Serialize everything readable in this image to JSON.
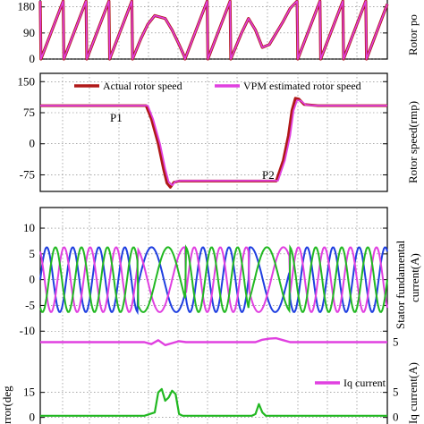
{
  "colors": {
    "actual": "#b01818",
    "vpm": "#e040e0",
    "phase_a": "#1f3fe0",
    "phase_b": "#e040e0",
    "phase_c": "#22b822",
    "iq": "#e040e0",
    "error": "#22b822"
  },
  "chart_data": [
    {
      "type": "line",
      "id": "rotor-position",
      "ylabel": "Rotor po",
      "yticks": [
        0,
        90,
        180
      ],
      "ytick_labels": [
        "0",
        "90",
        "180"
      ],
      "ylim": [
        0,
        210
      ],
      "xlim": [
        0,
        100
      ],
      "grid": true,
      "series": [
        {
          "name": "",
          "x": [
            0,
            0.2,
            6.6,
            6.8,
            13.2,
            13.4,
            19.8,
            20,
            26.4,
            26.6,
            29,
            31,
            33,
            36,
            38,
            40,
            41.5,
            41.7,
            48.1,
            48.3,
            54.7,
            54.9,
            58,
            60,
            62,
            64,
            66,
            68,
            70,
            72,
            74,
            74.2,
            80.6,
            80.8,
            87.2,
            87.4,
            93.8,
            94,
            100
          ],
          "y": [
            200,
            0,
            200,
            0,
            200,
            0,
            200,
            0,
            200,
            0,
            70,
            120,
            150,
            140,
            100,
            50,
            10,
            0,
            200,
            0,
            200,
            0,
            90,
            140,
            100,
            40,
            50,
            90,
            130,
            175,
            200,
            0,
            200,
            0,
            200,
            0,
            200,
            0,
            190
          ]
        }
      ]
    },
    {
      "type": "line",
      "id": "rotor-speed",
      "ylabel": "Rotor speed(rmp)",
      "yticks": [
        -75,
        0,
        75,
        150
      ],
      "ytick_labels": [
        "-75",
        "0",
        "75",
        "150"
      ],
      "ylim": [
        -115,
        170
      ],
      "xlim": [
        0,
        100
      ],
      "grid": true,
      "legend_position": "top",
      "annotations": [
        {
          "text": "P1",
          "x": 30.5,
          "y": 92
        },
        {
          "text": "P2",
          "x": 68,
          "y": -90
        }
      ],
      "series": [
        {
          "name": "Actual rotor speed",
          "x": [
            0,
            30.5,
            32,
            34,
            35.5,
            36.5,
            37.5,
            38.5,
            40,
            45,
            50,
            55,
            60,
            65,
            68,
            70,
            71.5,
            72.5,
            73.5,
            74.5,
            76,
            80,
            90,
            100
          ],
          "y": [
            92,
            92,
            60,
            0,
            -60,
            -95,
            -105,
            -93,
            -90,
            -90,
            -90,
            -90,
            -90,
            -90,
            -90,
            -40,
            20,
            80,
            110,
            108,
            95,
            92,
            92,
            92
          ]
        },
        {
          "name": "VPM estimated rotor speed",
          "x": [
            0,
            31,
            32.5,
            34.5,
            36,
            37,
            38,
            39,
            40.5,
            45,
            50,
            55,
            60,
            65,
            68.5,
            70.5,
            72,
            73,
            74,
            75,
            76.5,
            80,
            90,
            100
          ],
          "y": [
            92,
            92,
            60,
            0,
            -60,
            -92,
            -100,
            -91,
            -89,
            -89,
            -89,
            -89,
            -89,
            -89,
            -89,
            -40,
            20,
            80,
            105,
            104,
            94,
            92,
            92,
            92
          ]
        }
      ]
    },
    {
      "type": "line",
      "id": "stator-current",
      "ylabel": "Stator fundamental current(A)",
      "yticks": [
        -10,
        -5,
        0,
        5,
        10
      ],
      "ytick_labels": [
        "-10",
        "-5",
        "0",
        "5",
        "10"
      ],
      "ylim": [
        -11,
        14
      ],
      "xlim": [
        0,
        100
      ],
      "grid": true,
      "series": [
        {
          "name": "",
          "amplitude": 6.3,
          "period": 7.5,
          "phase_deg": 0
        },
        {
          "name": "",
          "amplitude": 6.3,
          "period": 7.5,
          "phase_deg": 120
        },
        {
          "name": "",
          "amplitude": 6.3,
          "period": 7.5,
          "phase_deg": 240
        }
      ]
    },
    {
      "type": "line",
      "id": "iq-current",
      "ylabel": "Iq current(A)",
      "yticks": [
        5
      ],
      "ytick_labels": [
        "5"
      ],
      "ylim": [
        0,
        8
      ],
      "xlim": [
        0,
        100
      ],
      "grid": true,
      "legend_position": "right",
      "series": [
        {
          "name": "Iq current",
          "x": [
            0,
            30,
            32,
            34,
            36,
            38,
            40,
            42,
            60,
            62,
            64,
            66,
            68,
            70,
            72,
            100
          ],
          "y": [
            5,
            5,
            4.6,
            5.4,
            4.4,
            4.8,
            5.2,
            5,
            5,
            5,
            5.5,
            5.7,
            5.8,
            5.4,
            5,
            5
          ]
        }
      ]
    },
    {
      "type": "line",
      "id": "error",
      "ylabel": "rror(deg",
      "y2label": "",
      "yticks": [
        0,
        15
      ],
      "ytick_labels": [
        "0",
        "15"
      ],
      "y2ticks": [
        0,
        5
      ],
      "y2tick_labels": [
        "0",
        "5"
      ],
      "ylim": [
        -5,
        25
      ],
      "xlim": [
        0,
        100
      ],
      "grid": true,
      "series": [
        {
          "name": "",
          "x": [
            0,
            30,
            33,
            34,
            35,
            36,
            37,
            38,
            39,
            40,
            41,
            42,
            60,
            61,
            62,
            63,
            64,
            65,
            100
          ],
          "y": [
            1,
            1,
            3,
            15,
            17,
            10,
            12,
            16,
            14,
            2,
            1,
            1,
            1,
            1,
            2,
            8,
            3,
            1,
            1
          ]
        }
      ]
    }
  ],
  "legend": {
    "actual_label": "Actual rotor speed",
    "vpm_label": "VPM estimated rotor speed",
    "iq_label": "Iq current"
  },
  "annotations": {
    "p1": "P1",
    "p2": "P2"
  },
  "labels": {
    "pos_ylabel": "Rotor po",
    "speed_ylabel": "Rotor speed(rmp)",
    "current_ylabel_1": "Stator fundamental",
    "current_ylabel_2": "current(A)",
    "iq_ylabel": "Iq current(A)",
    "err_ylabel": "rror(deg"
  }
}
